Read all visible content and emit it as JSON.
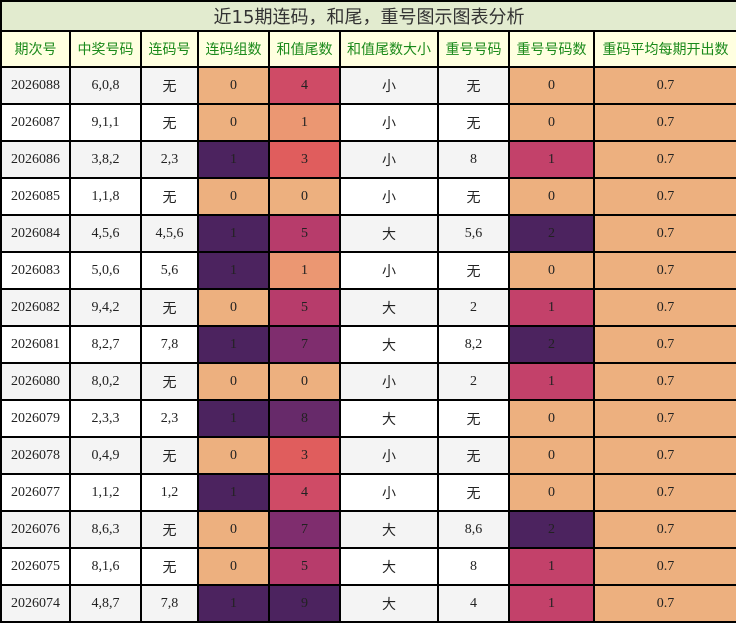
{
  "title": "近15期连码，和尾，重号图示图表分析",
  "headers": [
    "期次号",
    "中奖号码",
    "连码号",
    "连码组数",
    "和值尾数",
    "和值尾数大小",
    "重号号码",
    "重号号码数",
    "重码平均每期开出数"
  ],
  "colors": {
    "title_bg": "#e2ebcf",
    "header_bg": "#ffffe0",
    "header_text": "#1a8a1a",
    "val_0": "#edb07f",
    "val_1_tail": "#eb9772",
    "val_3": "#e05d5d",
    "val_4": "#cf4b66",
    "val_5": "#b73c6b",
    "val_7": "#7f2d6e",
    "val_8": "#672a6a",
    "val_9": "#4c235f",
    "lian_1": "#4c235f",
    "chong_1": "#c3416a",
    "chong_2": "#4c235f"
  },
  "rows": [
    {
      "issue": "2026088",
      "numbers": "6,0,8",
      "lian": "无",
      "lian_count": "0",
      "tail": "4",
      "size": "小",
      "chong": "无",
      "chong_count": "0",
      "avg": "0.7"
    },
    {
      "issue": "2026087",
      "numbers": "9,1,1",
      "lian": "无",
      "lian_count": "0",
      "tail": "1",
      "size": "小",
      "chong": "无",
      "chong_count": "0",
      "avg": "0.7"
    },
    {
      "issue": "2026086",
      "numbers": "3,8,2",
      "lian": "2,3",
      "lian_count": "1",
      "tail": "3",
      "size": "小",
      "chong": "8",
      "chong_count": "1",
      "avg": "0.7"
    },
    {
      "issue": "2026085",
      "numbers": "1,1,8",
      "lian": "无",
      "lian_count": "0",
      "tail": "0",
      "size": "小",
      "chong": "无",
      "chong_count": "0",
      "avg": "0.7"
    },
    {
      "issue": "2026084",
      "numbers": "4,5,6",
      "lian": "4,5,6",
      "lian_count": "1",
      "tail": "5",
      "size": "大",
      "chong": "5,6",
      "chong_count": "2",
      "avg": "0.7"
    },
    {
      "issue": "2026083",
      "numbers": "5,0,6",
      "lian": "5,6",
      "lian_count": "1",
      "tail": "1",
      "size": "小",
      "chong": "无",
      "chong_count": "0",
      "avg": "0.7"
    },
    {
      "issue": "2026082",
      "numbers": "9,4,2",
      "lian": "无",
      "lian_count": "0",
      "tail": "5",
      "size": "大",
      "chong": "2",
      "chong_count": "1",
      "avg": "0.7"
    },
    {
      "issue": "2026081",
      "numbers": "8,2,7",
      "lian": "7,8",
      "lian_count": "1",
      "tail": "7",
      "size": "大",
      "chong": "8,2",
      "chong_count": "2",
      "avg": "0.7"
    },
    {
      "issue": "2026080",
      "numbers": "8,0,2",
      "lian": "无",
      "lian_count": "0",
      "tail": "0",
      "size": "小",
      "chong": "2",
      "chong_count": "1",
      "avg": "0.7"
    },
    {
      "issue": "2026079",
      "numbers": "2,3,3",
      "lian": "2,3",
      "lian_count": "1",
      "tail": "8",
      "size": "大",
      "chong": "无",
      "chong_count": "0",
      "avg": "0.7"
    },
    {
      "issue": "2026078",
      "numbers": "0,4,9",
      "lian": "无",
      "lian_count": "0",
      "tail": "3",
      "size": "小",
      "chong": "无",
      "chong_count": "0",
      "avg": "0.7"
    },
    {
      "issue": "2026077",
      "numbers": "1,1,2",
      "lian": "1,2",
      "lian_count": "1",
      "tail": "4",
      "size": "小",
      "chong": "无",
      "chong_count": "0",
      "avg": "0.7"
    },
    {
      "issue": "2026076",
      "numbers": "8,6,3",
      "lian": "无",
      "lian_count": "0",
      "tail": "7",
      "size": "大",
      "chong": "8,6",
      "chong_count": "2",
      "avg": "0.7"
    },
    {
      "issue": "2026075",
      "numbers": "8,1,6",
      "lian": "无",
      "lian_count": "0",
      "tail": "5",
      "size": "大",
      "chong": "8",
      "chong_count": "1",
      "avg": "0.7"
    },
    {
      "issue": "2026074",
      "numbers": "4,8,7",
      "lian": "7,8",
      "lian_count": "1",
      "tail": "9",
      "size": "大",
      "chong": "4",
      "chong_count": "1",
      "avg": "0.7"
    }
  ]
}
